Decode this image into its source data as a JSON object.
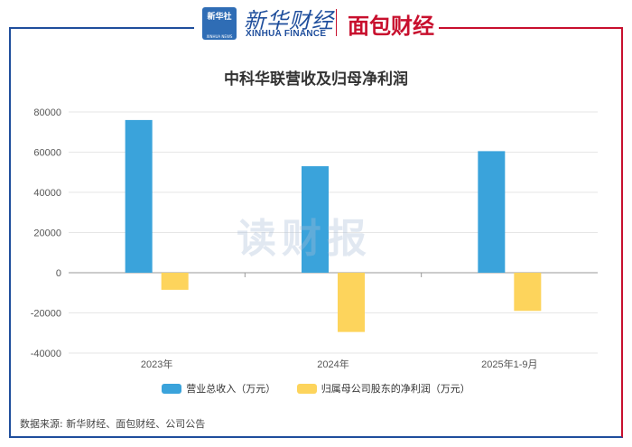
{
  "header": {
    "xinhua_badge_top": "新华社",
    "xinhua_badge_sub": "XINHUA NEWS",
    "xinhua_brand": "新华财经",
    "xinhua_sub": "XINHUA FINANCE",
    "mianbao_brand": "面包财经"
  },
  "watermark": "读财报",
  "source": "数据来源: 新华财经、面包财经、公司公告",
  "colors": {
    "revenue": "#3aa3db",
    "profit": "#fdd45c",
    "frame_blue": "#1f4e9c",
    "frame_red": "#c8102e"
  },
  "chart_data": {
    "type": "bar",
    "title": "中科华联营收及归母净利润",
    "categories": [
      "2023年",
      "2024年",
      "2025年1-9月"
    ],
    "series": [
      {
        "name": "营业总收入（万元）",
        "values": [
          76000,
          53000,
          60500
        ]
      },
      {
        "name": "归属母公司股东的净利润（万元）",
        "values": [
          -8500,
          -29500,
          -19000
        ]
      }
    ],
    "ylim": [
      -40000,
      80000
    ],
    "yticks": [
      80000,
      60000,
      40000,
      20000,
      0,
      -20000,
      -40000
    ],
    "grid": true,
    "legend": "bottom"
  }
}
